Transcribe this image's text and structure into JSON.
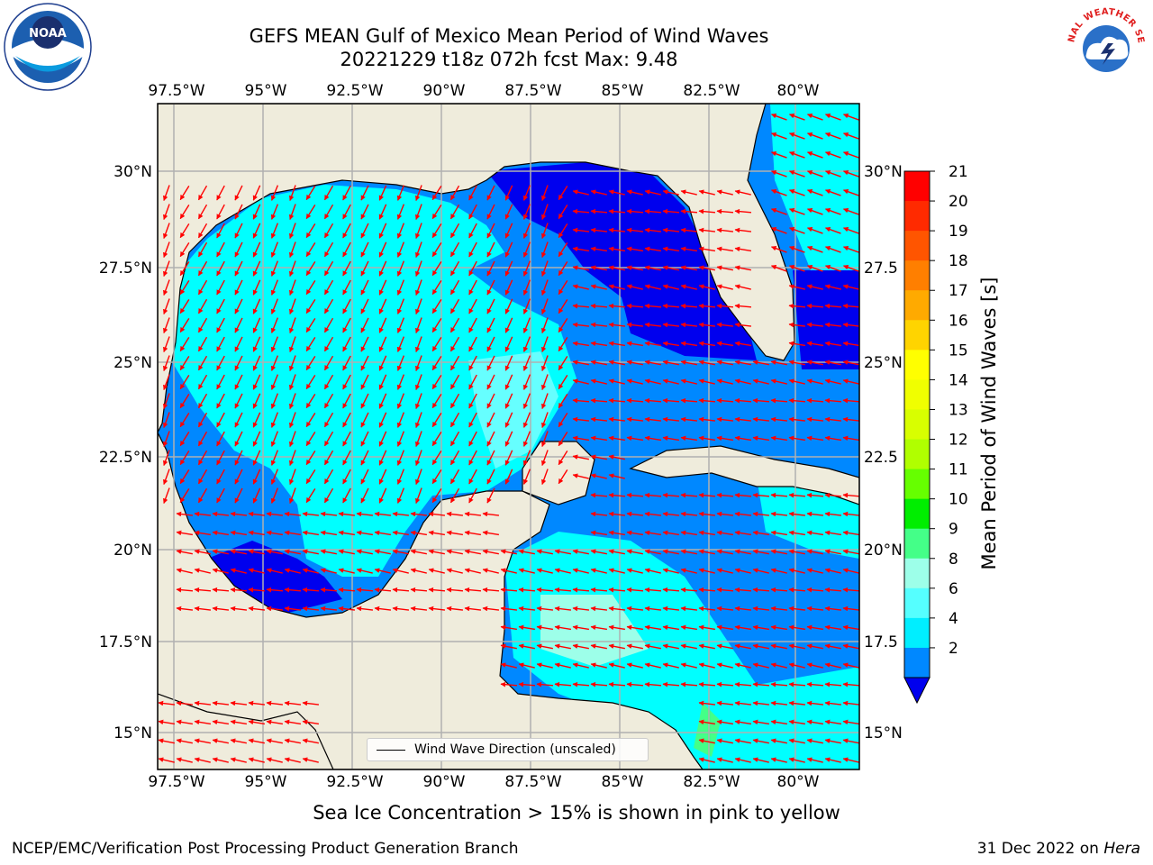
{
  "header": {
    "title_line1": "GEFS MEAN Gulf of Mexico Mean Period of Wind Waves",
    "title_line2": "20221229 t18z 072h fcst   Max: 9.48"
  },
  "logos": {
    "left": "NOAA",
    "right": "NATIONAL WEATHER SERVICE"
  },
  "axes": {
    "lon_labels": [
      "97.5°W",
      "95°W",
      "92.5°W",
      "90°W",
      "87.5°W",
      "85°W",
      "82.5°W",
      "80°W"
    ],
    "lat_labels": [
      "30°N",
      "27.5°N",
      "25°N",
      "22.5°N",
      "20°N",
      "17.5°N",
      "15°N"
    ],
    "lat_labels_right": [
      "30°N",
      "27.5",
      "25°N",
      "22.5",
      "20°N",
      "17.5",
      "15°N"
    ]
  },
  "colorbar": {
    "label": "Mean Period of Wind Waves [s]",
    "ticks": [
      "21",
      "20",
      "19",
      "18",
      "17",
      "16",
      "15",
      "14",
      "13",
      "12",
      "11",
      "10",
      "9",
      "8",
      "6",
      "4",
      "2"
    ],
    "colors": [
      "#ff0000",
      "#ff2a00",
      "#ff5500",
      "#ff7f00",
      "#ffaa00",
      "#ffd400",
      "#ffff00",
      "#f0ff00",
      "#d8ff00",
      "#b0ff00",
      "#66ff00",
      "#00ee00",
      "#44ff88",
      "#9dffe9",
      "#55ffff",
      "#00eeff",
      "#0088ff",
      "#0000ee"
    ]
  },
  "legend": {
    "label": "Wind Wave Direction (unscaled)"
  },
  "notes": {
    "sea_ice": "Sea Ice Concentration > 15% is shown in pink to yellow",
    "footer_left": "NCEP/EMC/Verification Post Processing Product Generation Branch",
    "footer_date": "31 Dec 2022 on",
    "footer_machine": "Hera"
  },
  "colors": {
    "land": "#efecdc",
    "arrow": "#ff0000",
    "grid": "#b0b0b0"
  }
}
